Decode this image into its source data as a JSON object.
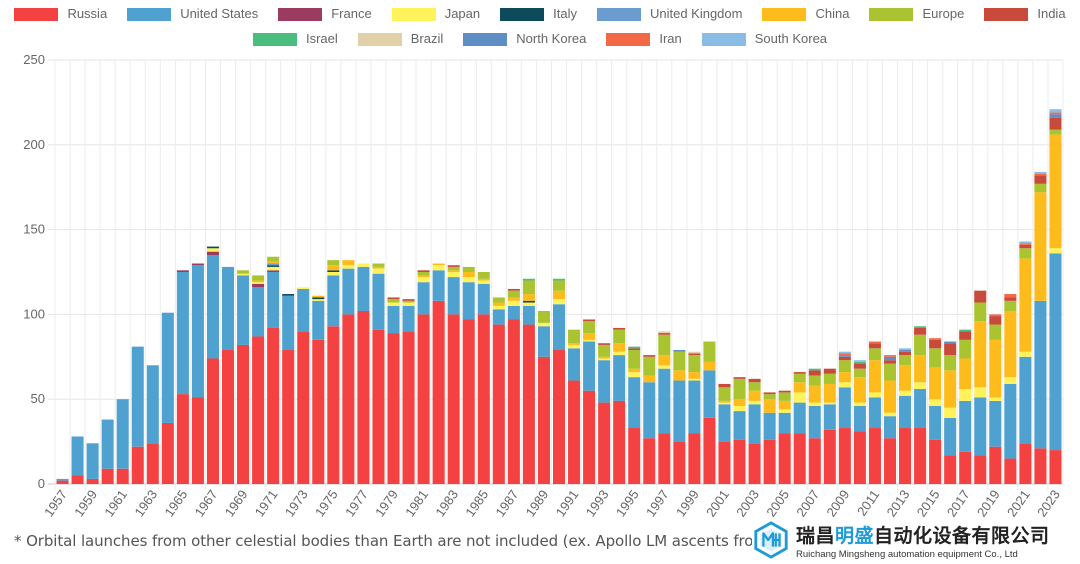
{
  "chart_data": {
    "type": "bar",
    "stacked": true,
    "x": [
      1957,
      1958,
      1959,
      1960,
      1961,
      1962,
      1963,
      1964,
      1965,
      1966,
      1967,
      1968,
      1969,
      1970,
      1971,
      1972,
      1973,
      1974,
      1975,
      1976,
      1977,
      1978,
      1979,
      1980,
      1981,
      1982,
      1983,
      1984,
      1985,
      1986,
      1987,
      1988,
      1989,
      1990,
      1991,
      1992,
      1993,
      1994,
      1995,
      1996,
      1997,
      1998,
      1999,
      2000,
      2001,
      2002,
      2003,
      2004,
      2005,
      2006,
      2007,
      2008,
      2009,
      2010,
      2011,
      2012,
      2013,
      2014,
      2015,
      2016,
      2017,
      2018,
      2019,
      2020,
      2021,
      2022,
      2023
    ],
    "x_tick_labels": [
      "1957",
      "1959",
      "1961",
      "1963",
      "1965",
      "1967",
      "1969",
      "1971",
      "1973",
      "1975",
      "1977",
      "1979",
      "1981",
      "1983",
      "1985",
      "1987",
      "1989",
      "1991",
      "1993",
      "1995",
      "1997",
      "1999",
      "2001",
      "2003",
      "2005",
      "2007",
      "2009",
      "2011",
      "2013",
      "2015",
      "2017",
      "2019",
      "2021",
      "2023"
    ],
    "ylim": [
      0,
      250
    ],
    "y_ticks": [
      0,
      50,
      100,
      150,
      200,
      250
    ],
    "grid": true,
    "legend_position": "top",
    "series": [
      {
        "name": "Russia",
        "color": "#f44242",
        "values": [
          2,
          5,
          3,
          9,
          9,
          22,
          24,
          36,
          53,
          51,
          74,
          79,
          82,
          87,
          92,
          79,
          90,
          85,
          93,
          100,
          102,
          91,
          89,
          90,
          100,
          108,
          100,
          97,
          100,
          94,
          97,
          94,
          75,
          79,
          61,
          55,
          48,
          49,
          33,
          27,
          30,
          25,
          30,
          39,
          25,
          26,
          24,
          26,
          30,
          30,
          27,
          32,
          33,
          31,
          33,
          27,
          33,
          33,
          26,
          17,
          19,
          17,
          22,
          15,
          24,
          21,
          20
        ]
      },
      {
        "name": "United States",
        "color": "#4fa1d0",
        "values": [
          1,
          23,
          21,
          29,
          41,
          59,
          46,
          65,
          72,
          78,
          61,
          49,
          41,
          29,
          33,
          32,
          25,
          23,
          30,
          27,
          26,
          33,
          16,
          15,
          19,
          18,
          22,
          22,
          18,
          9,
          8,
          11,
          18,
          27,
          19,
          29,
          25,
          27,
          30,
          33,
          38,
          36,
          31,
          28,
          22,
          17,
          23,
          16,
          12,
          18,
          19,
          15,
          24,
          15,
          18,
          13,
          19,
          23,
          20,
          22,
          30,
          34,
          27,
          44,
          51,
          87,
          116
        ]
      },
      {
        "name": "France",
        "color": "#9b3b5f",
        "values": [
          0,
          0,
          0,
          0,
          0,
          0,
          0,
          0,
          1,
          1,
          2,
          0,
          0,
          2,
          1,
          0,
          0,
          0,
          0,
          0,
          0,
          0,
          0,
          0,
          0,
          0,
          0,
          0,
          0,
          0,
          0,
          0,
          0,
          0,
          0,
          0,
          0,
          0,
          0,
          0,
          0,
          0,
          0,
          0,
          0,
          0,
          0,
          0,
          0,
          0,
          0,
          0,
          0,
          0,
          0,
          0,
          0,
          0,
          0,
          0,
          0,
          0,
          0,
          0,
          0,
          0,
          0
        ]
      },
      {
        "name": "Japan",
        "color": "#fff25a",
        "values": [
          0,
          0,
          0,
          0,
          0,
          0,
          0,
          0,
          0,
          0,
          2,
          0,
          1,
          1,
          2,
          0,
          1,
          1,
          2,
          2,
          2,
          3,
          2,
          2,
          3,
          3,
          3,
          3,
          2,
          2,
          3,
          2,
          2,
          3,
          2,
          1,
          1,
          2,
          3,
          0,
          2,
          0,
          1,
          0,
          1,
          3,
          2,
          0,
          2,
          6,
          2,
          1,
          3,
          2,
          3,
          2,
          3,
          4,
          4,
          6,
          7,
          6,
          2,
          4,
          3,
          0,
          3
        ]
      },
      {
        "name": "Italy",
        "color": "#0d4a5a",
        "values": [
          0,
          0,
          0,
          0,
          0,
          0,
          0,
          0,
          0,
          0,
          1,
          0,
          0,
          0,
          1,
          1,
          0,
          1,
          1,
          0,
          0,
          0,
          0,
          0,
          0,
          0,
          0,
          0,
          0,
          0,
          0,
          1,
          0,
          0,
          0,
          0,
          0,
          0,
          0,
          0,
          0,
          0,
          0,
          0,
          0,
          0,
          0,
          0,
          0,
          0,
          0,
          0,
          0,
          0,
          0,
          0,
          0,
          0,
          0,
          0,
          0,
          0,
          0,
          0,
          0,
          0,
          0
        ]
      },
      {
        "name": "United Kingdom",
        "color": "#6a9ccf",
        "values": [
          0,
          0,
          0,
          0,
          0,
          0,
          0,
          0,
          0,
          0,
          0,
          0,
          0,
          0,
          1,
          0,
          0,
          0,
          0,
          0,
          0,
          0,
          0,
          0,
          0,
          0,
          0,
          0,
          0,
          0,
          0,
          0,
          0,
          0,
          0,
          0,
          0,
          0,
          0,
          0,
          0,
          0,
          0,
          0,
          0,
          0,
          0,
          0,
          0,
          0,
          0,
          0,
          0,
          0,
          0,
          0,
          0,
          0,
          0,
          0,
          0,
          0,
          0,
          0,
          0,
          0,
          0
        ]
      },
      {
        "name": "China",
        "color": "#fdbc1c",
        "values": [
          0,
          0,
          0,
          0,
          0,
          0,
          0,
          0,
          0,
          0,
          0,
          0,
          0,
          1,
          1,
          0,
          0,
          1,
          3,
          3,
          0,
          1,
          0,
          0,
          1,
          1,
          1,
          3,
          1,
          2,
          2,
          4,
          0,
          5,
          1,
          4,
          1,
          5,
          2,
          4,
          6,
          6,
          4,
          5,
          1,
          4,
          6,
          8,
          5,
          6,
          10,
          11,
          6,
          15,
          19,
          19,
          15,
          16,
          19,
          22,
          18,
          39,
          34,
          39,
          55,
          64,
          67
        ]
      },
      {
        "name": "Europe",
        "color": "#a9c430",
        "values": [
          0,
          0,
          0,
          0,
          0,
          0,
          0,
          0,
          0,
          0,
          0,
          0,
          2,
          3,
          3,
          0,
          0,
          0,
          3,
          0,
          0,
          2,
          2,
          1,
          2,
          0,
          2,
          3,
          4,
          3,
          4,
          8,
          7,
          6,
          8,
          7,
          7,
          8,
          11,
          11,
          12,
          11,
          10,
          12,
          8,
          12,
          5,
          3,
          5,
          5,
          6,
          6,
          7,
          5,
          7,
          10,
          6,
          12,
          11,
          9,
          11,
          11,
          9,
          6,
          6,
          5,
          3
        ]
      },
      {
        "name": "India",
        "color": "#c84a3a",
        "values": [
          0,
          0,
          0,
          0,
          0,
          0,
          0,
          0,
          0,
          0,
          0,
          0,
          0,
          0,
          0,
          0,
          0,
          0,
          0,
          0,
          0,
          0,
          1,
          1,
          1,
          0,
          1,
          0,
          0,
          0,
          1,
          0,
          0,
          0,
          0,
          1,
          1,
          1,
          1,
          1,
          1,
          0,
          1,
          0,
          2,
          1,
          2,
          1,
          1,
          1,
          3,
          3,
          2,
          3,
          3,
          2,
          2,
          4,
          5,
          7,
          5,
          7,
          5,
          2,
          2,
          5,
          7
        ]
      },
      {
        "name": "Israel",
        "color": "#4bbd7e",
        "values": [
          0,
          0,
          0,
          0,
          0,
          0,
          0,
          0,
          0,
          0,
          0,
          0,
          0,
          0,
          0,
          0,
          0,
          0,
          0,
          0,
          0,
          0,
          0,
          0,
          0,
          0,
          0,
          0,
          0,
          0,
          0,
          1,
          0,
          1,
          0,
          0,
          0,
          0,
          1,
          0,
          0,
          0,
          0,
          0,
          0,
          0,
          0,
          0,
          0,
          0,
          1,
          0,
          0,
          1,
          0,
          0,
          0,
          1,
          0,
          0,
          1,
          0,
          0,
          0,
          0,
          0,
          0
        ]
      },
      {
        "name": "Brazil",
        "color": "#e2d1a8",
        "values": [
          0,
          0,
          0,
          0,
          0,
          0,
          0,
          0,
          0,
          0,
          0,
          0,
          0,
          0,
          0,
          0,
          0,
          0,
          0,
          0,
          0,
          0,
          0,
          0,
          0,
          0,
          0,
          0,
          0,
          0,
          0,
          0,
          0,
          0,
          0,
          0,
          0,
          0,
          0,
          0,
          1,
          0,
          1,
          0,
          0,
          0,
          0,
          0,
          0,
          0,
          0,
          0,
          0,
          0,
          0,
          0,
          0,
          0,
          0,
          0,
          0,
          0,
          0,
          0,
          0,
          0,
          0
        ]
      },
      {
        "name": "North Korea",
        "color": "#5f8ec4",
        "values": [
          0,
          0,
          0,
          0,
          0,
          0,
          0,
          0,
          0,
          0,
          0,
          0,
          0,
          0,
          0,
          0,
          0,
          0,
          0,
          0,
          0,
          0,
          0,
          0,
          0,
          0,
          0,
          0,
          0,
          0,
          0,
          0,
          0,
          0,
          0,
          0,
          0,
          0,
          0,
          0,
          0,
          1,
          0,
          0,
          0,
          0,
          0,
          0,
          0,
          0,
          0,
          0,
          1,
          0,
          0,
          2,
          1,
          0,
          0,
          1,
          0,
          0,
          0,
          0,
          0,
          0,
          2
        ]
      },
      {
        "name": "Iran",
        "color": "#f36846",
        "values": [
          0,
          0,
          0,
          0,
          0,
          0,
          0,
          0,
          0,
          0,
          0,
          0,
          0,
          0,
          0,
          0,
          0,
          0,
          0,
          0,
          0,
          0,
          0,
          0,
          0,
          0,
          0,
          0,
          0,
          0,
          0,
          0,
          0,
          0,
          0,
          0,
          0,
          0,
          0,
          0,
          0,
          0,
          0,
          0,
          0,
          0,
          0,
          0,
          0,
          0,
          0,
          0,
          1,
          0,
          1,
          1,
          0,
          0,
          1,
          0,
          0,
          0,
          1,
          2,
          1,
          1,
          1
        ]
      },
      {
        "name": "South Korea",
        "color": "#8bbce6",
        "values": [
          0,
          0,
          0,
          0,
          0,
          0,
          0,
          0,
          0,
          0,
          0,
          0,
          0,
          0,
          0,
          0,
          0,
          0,
          0,
          0,
          0,
          0,
          0,
          0,
          0,
          0,
          0,
          0,
          0,
          0,
          0,
          0,
          0,
          0,
          0,
          0,
          0,
          0,
          0,
          0,
          0,
          0,
          0,
          0,
          0,
          0,
          0,
          0,
          0,
          0,
          0,
          0,
          1,
          1,
          0,
          0,
          1,
          0,
          0,
          0,
          0,
          0,
          0,
          0,
          1,
          1,
          2
        ]
      }
    ]
  },
  "footnote": "* Orbital launches from other celestial bodies than Earth are not included (ex. Apollo LM ascents from",
  "watermark": {
    "cn_part1": "瑞昌",
    "cn_part2": "明盛",
    "cn_part3": "自动化设备有限公司",
    "en": "Ruichang Mingsheng automation equipment Co., Ltd"
  }
}
